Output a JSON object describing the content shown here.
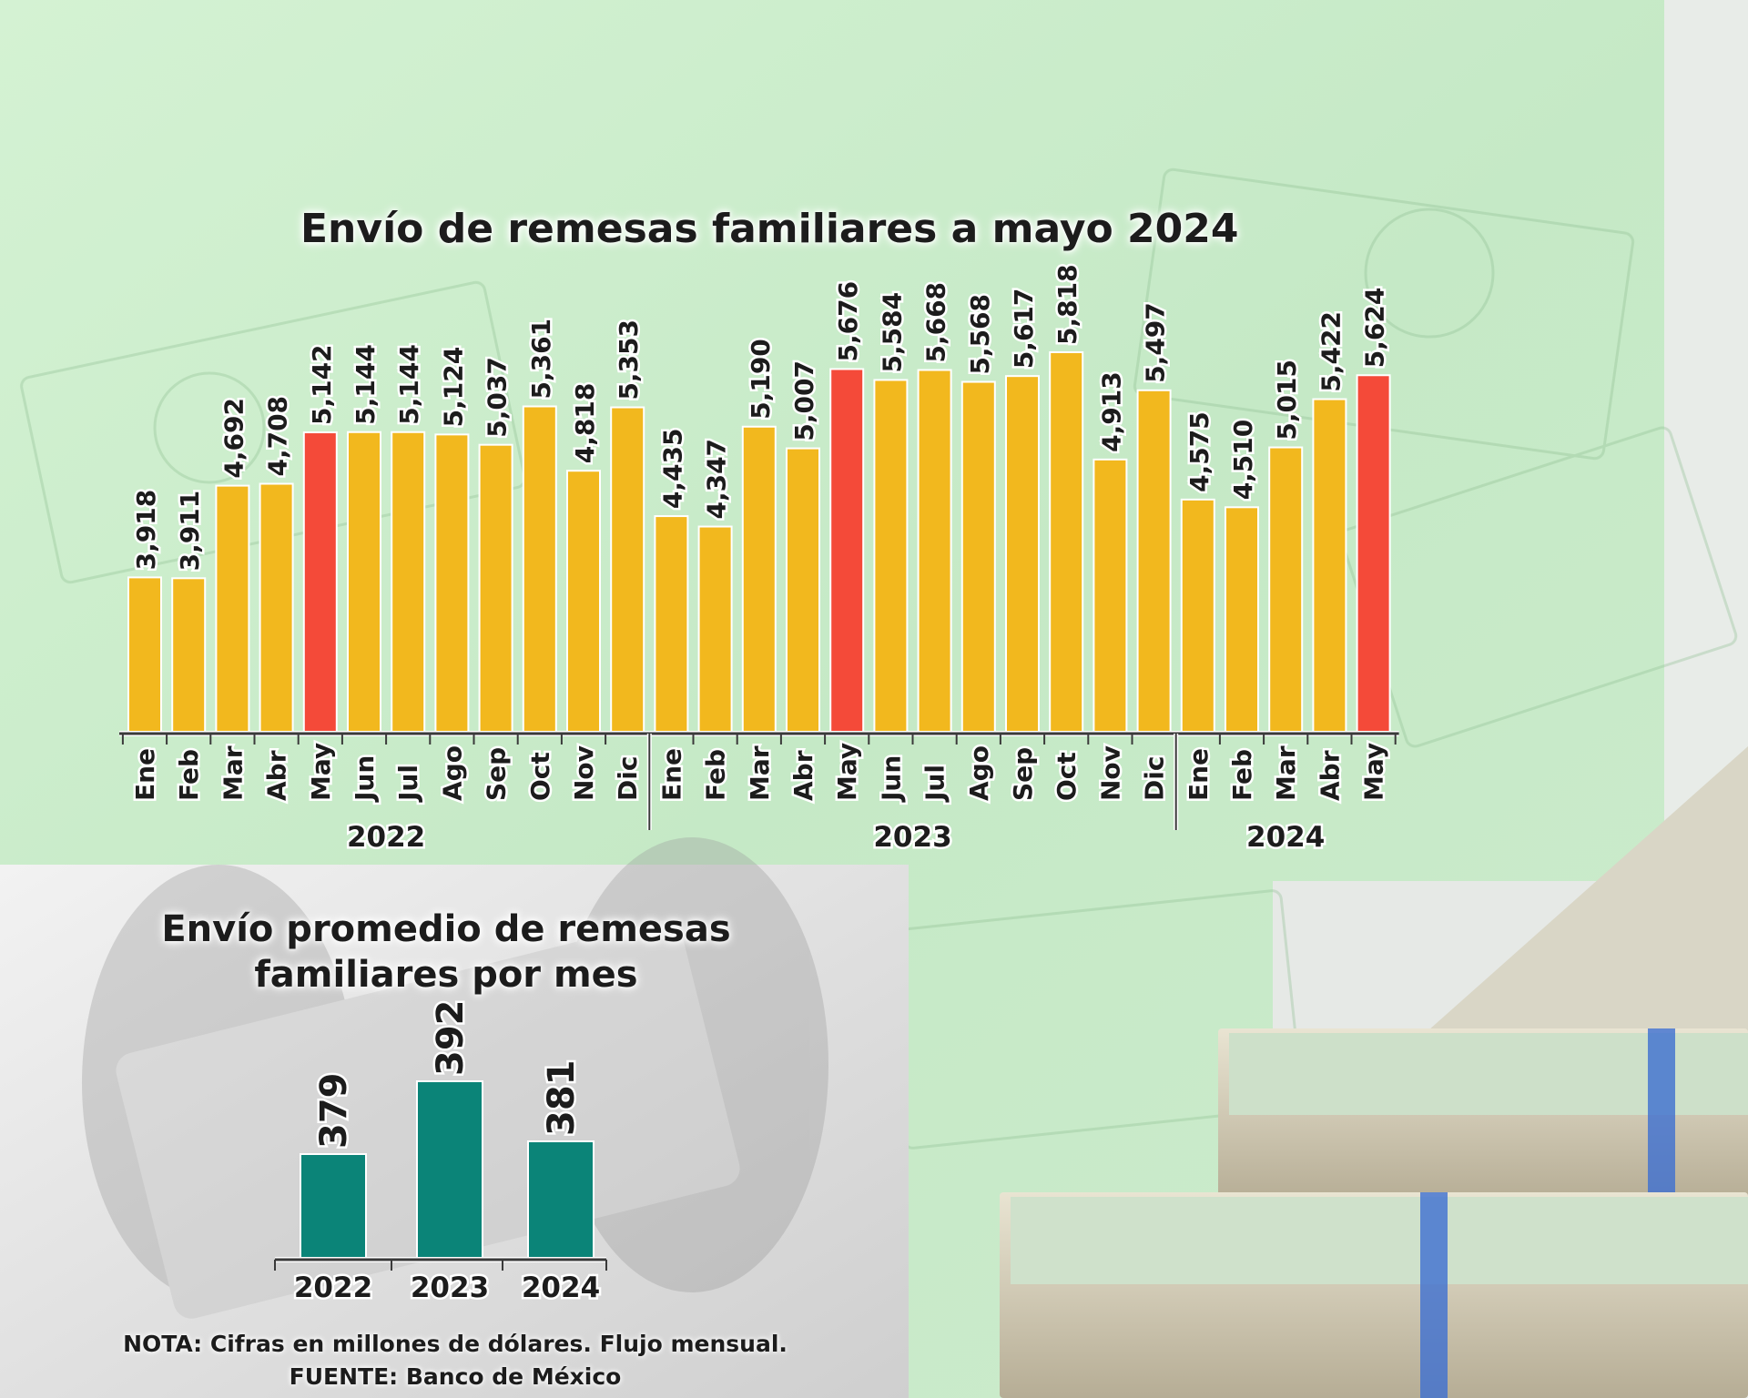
{
  "colors": {
    "bar_regular": "#f2b81e",
    "bar_highlight": "#f44a39",
    "bar_average": "#0b8478",
    "text": "#1c1c1c",
    "axis": "#3a3a3a"
  },
  "main_chart": {
    "title": "Envío de remesas familiares a mayo 2024"
  },
  "avg_chart": {
    "title": "Envío promedio de remesas familiares por mes"
  },
  "footer": {
    "note": "NOTA: Cifras en millones de dólares. Flujo mensual.",
    "source": "FUENTE: Banco de México"
  },
  "chart_data": [
    {
      "type": "bar",
      "title": "Envío de remesas familiares a mayo 2024",
      "categories": [
        "Ene",
        "Feb",
        "Mar",
        "Abr",
        "May",
        "Jun",
        "Jul",
        "Ago",
        "Sep",
        "Oct",
        "Nov",
        "Dic",
        "Ene",
        "Feb",
        "Mar",
        "Abr",
        "May",
        "Jun",
        "Jul",
        "Ago",
        "Sep",
        "Oct",
        "Nov",
        "Dic",
        "Ene",
        "Feb",
        "Mar",
        "Abr",
        "May"
      ],
      "values": [
        3918,
        3911,
        4692,
        4708,
        5142,
        5144,
        5144,
        5124,
        5037,
        5361,
        4818,
        5353,
        4435,
        4347,
        5190,
        5007,
        5676,
        5584,
        5668,
        5568,
        5617,
        5818,
        4913,
        5497,
        4575,
        4510,
        5015,
        5422,
        5624
      ],
      "value_labels": [
        "3,918",
        "3,911",
        "4,692",
        "4,708",
        "5,142",
        "5,144",
        "5,144",
        "5,124",
        "5,037",
        "5,361",
        "4,818",
        "5,353",
        "4,435",
        "4,347",
        "5,190",
        "5,007",
        "5,676",
        "5,584",
        "5,668",
        "5,568",
        "5,617",
        "5,818",
        "4,913",
        "5,497",
        "4,575",
        "4,510",
        "5,015",
        "5,422",
        "5,624"
      ],
      "highlight": [
        4,
        16,
        28
      ],
      "groups": [
        {
          "label": "2022",
          "start": 0,
          "end": 11
        },
        {
          "label": "2023",
          "start": 12,
          "end": 23
        },
        {
          "label": "2024",
          "start": 24,
          "end": 28
        }
      ],
      "ylim": [
        2600,
        6150
      ],
      "grid": false,
      "legend": "none"
    },
    {
      "type": "bar",
      "title": "Envío promedio de remesas familiares por mes",
      "categories": [
        "2022",
        "2023",
        "2024"
      ],
      "values": [
        379,
        392,
        381
      ],
      "value_labels": [
        "379",
        "392",
        "381"
      ],
      "ylim": [
        0,
        420
      ],
      "grid": false,
      "legend": "none"
    }
  ]
}
